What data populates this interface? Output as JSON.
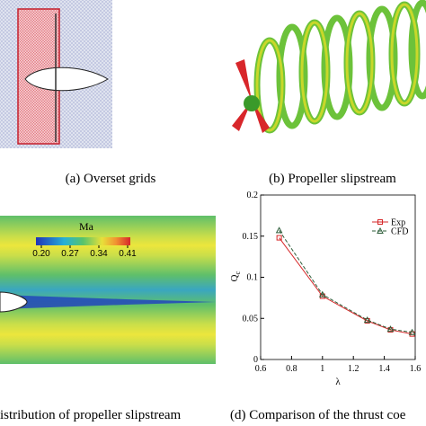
{
  "captions": {
    "a": "(a) Overset grids",
    "b": "(b) Propeller slipstream",
    "c": "istribution of propeller slipstream",
    "d": "(d) Comparison of the thrust coe"
  },
  "contour": {
    "title": "Ma",
    "ticks": [
      {
        "value": 0.2,
        "label": "0.20"
      },
      {
        "value": 0.27,
        "label": "0.27"
      },
      {
        "value": 0.34,
        "label": "0.34"
      },
      {
        "value": 0.41,
        "label": "0.41"
      }
    ]
  },
  "chart_data": {
    "type": "line",
    "x_label": "λ",
    "y_label": "Q",
    "y_label_subscript": "c",
    "x": [
      0.72,
      1.0,
      1.29,
      1.44,
      1.58
    ],
    "series": [
      {
        "name": "Exp",
        "color": "#d62728",
        "values": [
          0.148,
          0.077,
          0.047,
          0.036,
          0.031
        ]
      },
      {
        "name": "CFD",
        "color": "#2e5e3a",
        "values": [
          0.157,
          0.079,
          0.048,
          0.037,
          0.033
        ]
      }
    ],
    "xlim": [
      0.6,
      1.6
    ],
    "xticks": [
      0.6,
      0.8,
      1,
      1.2,
      1.4,
      1.6
    ],
    "ylim": [
      0,
      0.2
    ],
    "yticks": [
      0,
      0.05,
      0.1,
      0.15,
      0.2
    ],
    "legend": "upper right"
  }
}
